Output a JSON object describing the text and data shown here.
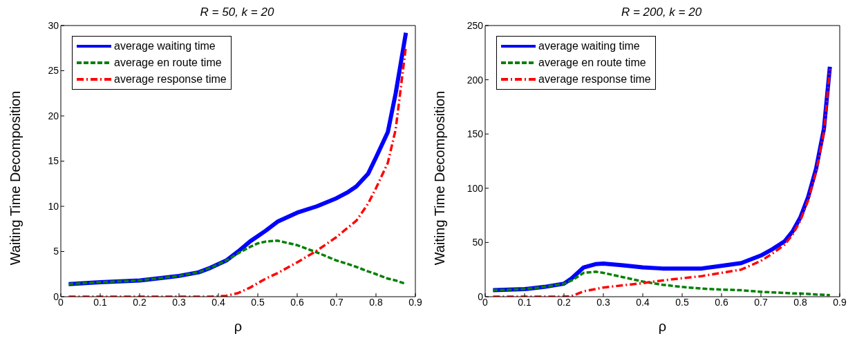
{
  "chart_data": [
    {
      "type": "line",
      "title": "R = 50, k = 20",
      "xlabel": "ρ",
      "ylabel": "Waiting Time Decomposition",
      "x": [
        0.02,
        0.1,
        0.2,
        0.25,
        0.3,
        0.35,
        0.38,
        0.42,
        0.45,
        0.48,
        0.5,
        0.52,
        0.55,
        0.6,
        0.65,
        0.7,
        0.73,
        0.75,
        0.78,
        0.8,
        0.83,
        0.85,
        0.876
      ],
      "series": [
        {
          "name": "average waiting time",
          "color": "#0000ff",
          "line_style": "solid",
          "values": [
            1.4,
            1.6,
            1.8,
            2.05,
            2.3,
            2.7,
            3.2,
            4.0,
            5.0,
            6.1,
            6.7,
            7.3,
            8.3,
            9.3,
            10.0,
            10.9,
            11.6,
            12.2,
            13.6,
            15.4,
            18.2,
            22.5,
            29.2
          ]
        },
        {
          "name": "average en route time",
          "color": "#008000",
          "line_style": "dashed",
          "values": [
            1.4,
            1.6,
            1.8,
            2.05,
            2.3,
            2.7,
            3.2,
            4.0,
            4.8,
            5.5,
            5.9,
            6.1,
            6.2,
            5.7,
            4.9,
            4.0,
            3.6,
            3.3,
            2.8,
            2.5,
            2.0,
            1.8,
            1.4
          ]
        },
        {
          "name": "average response time",
          "color": "#ff0000",
          "line_style": "dashdot",
          "values": [
            0,
            0,
            0,
            0,
            0,
            0,
            0,
            0.1,
            0.4,
            1.0,
            1.5,
            2.0,
            2.6,
            3.8,
            5.1,
            6.6,
            7.7,
            8.4,
            10.3,
            12.0,
            14.8,
            18.5,
            27.7
          ]
        }
      ],
      "xlim": [
        0,
        0.9
      ],
      "xticks": [
        0,
        0.1,
        0.2,
        0.3,
        0.4,
        0.5,
        0.6,
        0.7,
        0.8,
        0.9
      ],
      "ylim": [
        0,
        30
      ],
      "yticks": [
        0,
        5,
        10,
        15,
        20,
        25,
        30
      ],
      "grid": false,
      "legend": "top left",
      "marker": "none"
    },
    {
      "type": "line",
      "title": "R = 200, k = 20",
      "xlabel": "ρ",
      "ylabel": "Waiting Time Decomposition",
      "x": [
        0.02,
        0.1,
        0.15,
        0.2,
        0.22,
        0.25,
        0.28,
        0.3,
        0.35,
        0.4,
        0.45,
        0.5,
        0.55,
        0.6,
        0.65,
        0.7,
        0.73,
        0.76,
        0.78,
        0.8,
        0.82,
        0.84,
        0.86,
        0.875
      ],
      "series": [
        {
          "name": "average waiting time",
          "color": "#0000ff",
          "line_style": "solid",
          "values": [
            6,
            7,
            9,
            12,
            17,
            27,
            30,
            30.5,
            29,
            27,
            26,
            26,
            26,
            28.5,
            31,
            38,
            44,
            51,
            60,
            73,
            92,
            118,
            155,
            212
          ]
        },
        {
          "name": "average en route time",
          "color": "#008000",
          "line_style": "dashed",
          "values": [
            6,
            7,
            9,
            12,
            15,
            22,
            23,
            22,
            18,
            14,
            11,
            9,
            7.5,
            6.5,
            6,
            4.5,
            4,
            3.5,
            3,
            3,
            2.5,
            2,
            1.8,
            1.5
          ]
        },
        {
          "name": "average response time",
          "color": "#ff0000",
          "line_style": "dashdot",
          "values": [
            0,
            0,
            0,
            0,
            0.5,
            5,
            7,
            8.5,
            10.5,
            12.5,
            15,
            17,
            19,
            22,
            25,
            33,
            40,
            48,
            57,
            70,
            89,
            115,
            152,
            210
          ]
        }
      ],
      "xlim": [
        0,
        0.9
      ],
      "xticks": [
        0,
        0.1,
        0.2,
        0.3,
        0.4,
        0.5,
        0.6,
        0.7,
        0.8,
        0.9
      ],
      "ylim": [
        0,
        250
      ],
      "yticks": [
        0,
        50,
        100,
        150,
        200,
        250
      ],
      "grid": false,
      "legend": "top left",
      "marker": "none"
    }
  ]
}
